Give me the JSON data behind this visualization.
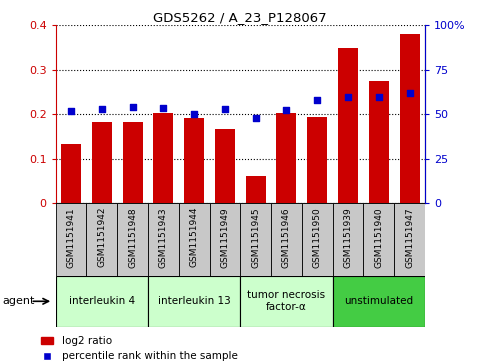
{
  "title": "GDS5262 / A_23_P128067",
  "samples": [
    "GSM1151941",
    "GSM1151942",
    "GSM1151948",
    "GSM1151943",
    "GSM1151944",
    "GSM1151949",
    "GSM1151945",
    "GSM1151946",
    "GSM1151950",
    "GSM1151939",
    "GSM1151940",
    "GSM1151947"
  ],
  "log2_ratio": [
    0.133,
    0.182,
    0.183,
    0.204,
    0.192,
    0.168,
    0.062,
    0.203,
    0.194,
    0.35,
    0.274,
    0.38
  ],
  "percentile_right": [
    52,
    53,
    54,
    53.5,
    50,
    53,
    48,
    52.5,
    58,
    60,
    59.5,
    62
  ],
  "ylim_left": [
    0,
    0.4
  ],
  "ylim_right": [
    0,
    100
  ],
  "bar_color": "#cc0000",
  "dot_color": "#0000cc",
  "groups": [
    {
      "label": "interleukin 4",
      "start": 0,
      "end": 3,
      "color": "#ccffcc"
    },
    {
      "label": "interleukin 13",
      "start": 3,
      "end": 6,
      "color": "#ccffcc"
    },
    {
      "label": "tumor necrosis\nfactor-α",
      "start": 6,
      "end": 9,
      "color": "#ccffcc"
    },
    {
      "label": "unstimulated",
      "start": 9,
      "end": 12,
      "color": "#44cc44"
    }
  ],
  "left_yticks": [
    0,
    0.1,
    0.2,
    0.3,
    0.4
  ],
  "right_yticks": [
    0,
    25,
    50,
    75,
    100
  ],
  "legend_labels": [
    "log2 ratio",
    "percentile rank within the sample"
  ],
  "bar_color_hex": "#cc0000",
  "dot_color_hex": "#0000cc",
  "gray_bg": "#c8c8c8",
  "plot_bg": "#ffffff"
}
